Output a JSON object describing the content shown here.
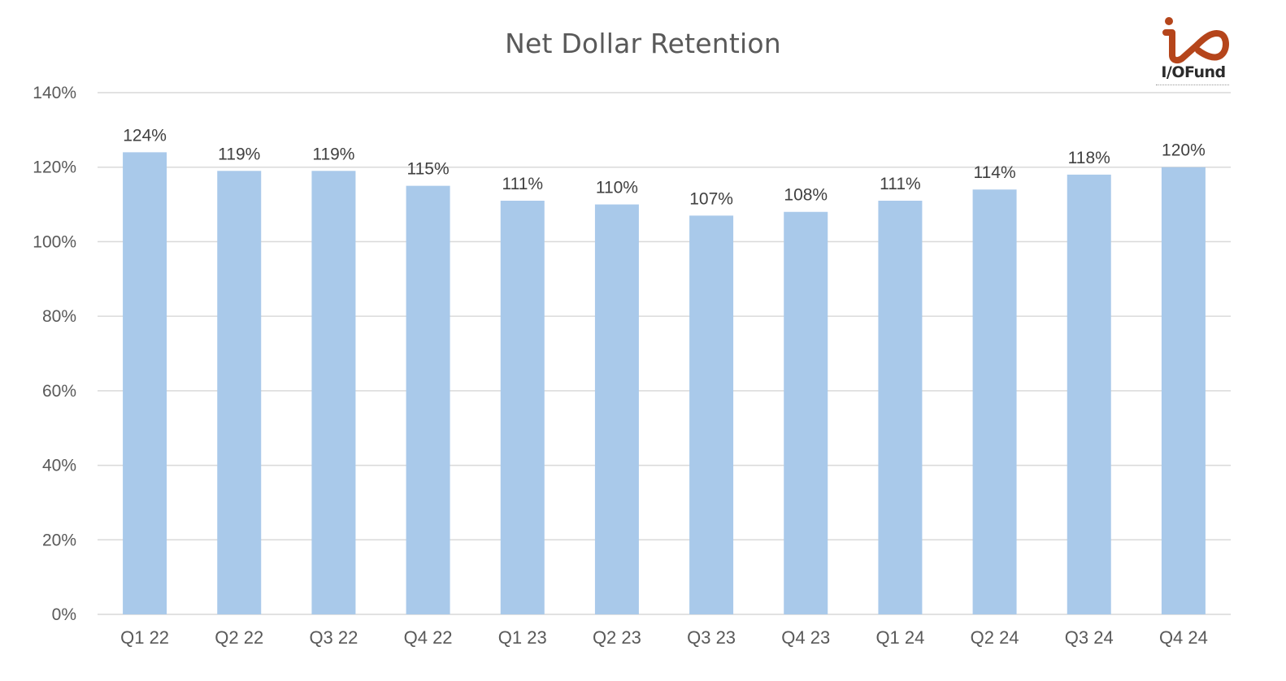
{
  "chart_data": {
    "type": "bar",
    "title": "Net Dollar Retention",
    "categories": [
      "Q1 22",
      "Q2 22",
      "Q3 22",
      "Q4 22",
      "Q1 23",
      "Q2 23",
      "Q3 23",
      "Q4 23",
      "Q1 24",
      "Q2 24",
      "Q3 24",
      "Q4 24"
    ],
    "values": [
      124,
      119,
      119,
      115,
      111,
      110,
      107,
      108,
      111,
      114,
      118,
      120
    ],
    "data_labels": [
      "124%",
      "119%",
      "119%",
      "115%",
      "111%",
      "110%",
      "107%",
      "108%",
      "111%",
      "114%",
      "118%",
      "120%"
    ],
    "y_ticks": [
      0,
      20,
      40,
      60,
      80,
      100,
      120,
      140
    ],
    "y_tick_labels": [
      "0%",
      "20%",
      "40%",
      "60%",
      "80%",
      "100%",
      "120%",
      "140%"
    ],
    "ylim": [
      0,
      140
    ],
    "xlabel": "",
    "ylabel": "",
    "grid": true,
    "legend": "none",
    "colors": {
      "bar": "#a9c9ea",
      "grid": "#d9d9d9",
      "axis_text": "#595959",
      "label_text": "#404040"
    }
  },
  "logo": {
    "text": "I/OFund",
    "icon": "io-fund-logo-icon",
    "color": "#b5451b"
  }
}
